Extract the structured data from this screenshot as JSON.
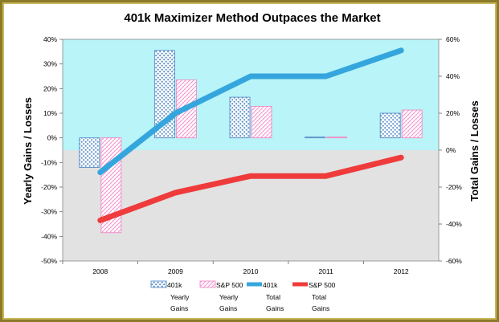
{
  "chart_data": {
    "type": "bar",
    "title": "401k Maximizer Method Outpaces the Market",
    "categories": [
      "2008",
      "2009",
      "2010",
      "2011",
      "2012"
    ],
    "ylabel": "Yearly Gains / Losses",
    "y2label": "Total Gains / Losses",
    "ylim": [
      -50,
      40
    ],
    "y2lim": [
      -60,
      60
    ],
    "y_ticks": [
      "40%",
      "30%",
      "20%",
      "10%",
      "0%",
      "-10%",
      "-20%",
      "-30%",
      "-40%",
      "-50%"
    ],
    "y2_ticks": [
      "60%",
      "40%",
      "20%",
      "0%",
      "-20%",
      "-40%",
      "-60%"
    ],
    "series": [
      {
        "name": "401k Yearly Gains",
        "kind": "bar",
        "axis": "left",
        "color": "#5b8fc8",
        "values": [
          -12,
          35.5,
          16.5,
          0,
          10
        ]
      },
      {
        "name": "S&P 500 Yearly Gains",
        "kind": "bar",
        "axis": "left",
        "color": "#f08ac8",
        "values": [
          -38.5,
          23.5,
          12.8,
          0,
          11.3
        ]
      },
      {
        "name": "401k Total Gains",
        "kind": "line",
        "axis": "right",
        "color": "#35a6dd",
        "values": [
          -12,
          20,
          40,
          40,
          54
        ]
      },
      {
        "name": "S&P 500 Total Gains",
        "kind": "line",
        "axis": "right",
        "color": "#ef3b3b",
        "values": [
          -38,
          -23,
          -14,
          -14,
          -4
        ]
      }
    ],
    "legend": {
      "position": "bottom",
      "items": [
        {
          "line1": "401k",
          "line2": "Yearly",
          "line3": "Gains",
          "swatch": "bar",
          "color": "#5b8fc8"
        },
        {
          "line1": "S&P 500",
          "line2": "Yearly",
          "line3": "Gains",
          "swatch": "bar",
          "color": "#f08ac8"
        },
        {
          "line1": "401k",
          "line2": "Total",
          "line3": "Gains",
          "swatch": "line",
          "color": "#35a6dd"
        },
        {
          "line1": "S&P 500",
          "line2": "Total",
          "line3": "Gains",
          "swatch": "line",
          "color": "#ef3b3b"
        }
      ]
    },
    "background": {
      "positive_zone": "#b8f4f8",
      "negative_zone": "#e2e2e2"
    },
    "grid": false
  }
}
